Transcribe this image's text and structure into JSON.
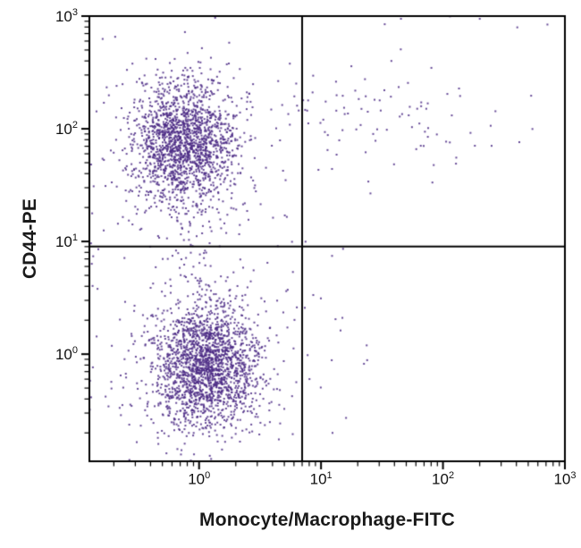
{
  "chart_data": {
    "type": "scatter",
    "title": "",
    "xlabel": "Monocyte/Macrophage-FITC",
    "ylabel": "CD44-PE",
    "x_scale": "log",
    "y_scale": "log",
    "xlim": [
      0.126,
      1000
    ],
    "ylim": [
      0.112,
      1000
    ],
    "x_ticks": [
      1,
      10,
      100,
      1000
    ],
    "y_ticks": [
      1,
      10,
      100,
      1000
    ],
    "grid": false,
    "legend": false,
    "point_color": "#4b2a85",
    "point_alpha": 0.85,
    "axis_color": "#000000",
    "quadrant_gate": {
      "x": 7,
      "y": 9,
      "color": "#000000"
    },
    "seed": 42,
    "populations": [
      {
        "name": "cd44-pos-core",
        "n": 1500,
        "cx": -0.13,
        "cy": 1.88,
        "sx": 0.2,
        "sy": 0.26
      },
      {
        "name": "cd44-pos-halo",
        "n": 330,
        "cx": -0.1,
        "cy": 1.85,
        "sx": 0.38,
        "sy": 0.46
      },
      {
        "name": "double-neg-core",
        "n": 1700,
        "cx": 0.06,
        "cy": -0.1,
        "sx": 0.21,
        "sy": 0.26
      },
      {
        "name": "double-neg-halo",
        "n": 330,
        "cx": 0.0,
        "cy": -0.15,
        "sx": 0.4,
        "sy": 0.46
      },
      {
        "name": "bridge",
        "n": 70,
        "cx": 0.0,
        "cy": 0.9,
        "sx": 0.2,
        "sy": 0.55
      },
      {
        "name": "double-pos-band",
        "n": 90,
        "cx": 1.5,
        "cy": 2.08,
        "sx": 0.52,
        "sy": 0.22
      },
      {
        "name": "right-low-sparse",
        "n": 22,
        "cx": 0.95,
        "cy": 0.45,
        "sx": 0.3,
        "sy": 0.6
      },
      {
        "name": "top-edge",
        "n": 22,
        "cx": 2.2,
        "cy": 3.12,
        "sx": 0.5,
        "sy": 0.12
      },
      {
        "name": "left-edge",
        "n": 55,
        "cx": -1.05,
        "cy": 0.9,
        "sx": 0.12,
        "sy": 1.0
      }
    ]
  }
}
